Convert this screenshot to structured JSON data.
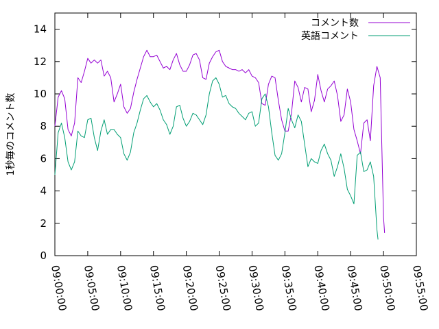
{
  "chart_data": {
    "type": "line",
    "title": "",
    "xlabel": "",
    "ylabel": "1秒毎のコメント数",
    "ylim": [
      0,
      15
    ],
    "yticks": [
      "0",
      "2",
      "4",
      "6",
      "8",
      "10",
      "12",
      "14"
    ],
    "xlim": [
      "09:00:00",
      "09:55:00"
    ],
    "xticks": [
      "09:00:00",
      "09:05:00",
      "09:10:00",
      "09:15:00",
      "09:20:00",
      "09:25:00",
      "09:30:00",
      "09:35:00",
      "09:40:00",
      "09:45:00",
      "09:50:00",
      "09:55:00"
    ],
    "grid": false,
    "legend_position": "top-right",
    "series": [
      {
        "name": "コメント数",
        "color": "#9400d3",
        "points": [
          [
            "09:00:00",
            8.0
          ],
          [
            "09:00:30",
            9.8
          ],
          [
            "09:01:00",
            10.2
          ],
          [
            "09:01:30",
            9.7
          ],
          [
            "09:02:00",
            7.8
          ],
          [
            "09:02:30",
            7.4
          ],
          [
            "09:03:00",
            8.2
          ],
          [
            "09:03:30",
            11.0
          ],
          [
            "09:04:00",
            10.7
          ],
          [
            "09:04:30",
            11.4
          ],
          [
            "09:05:00",
            12.2
          ],
          [
            "09:05:30",
            11.9
          ],
          [
            "09:06:00",
            12.1
          ],
          [
            "09:06:30",
            11.9
          ],
          [
            "09:07:00",
            12.1
          ],
          [
            "09:07:30",
            11.1
          ],
          [
            "09:08:00",
            11.4
          ],
          [
            "09:08:30",
            11.0
          ],
          [
            "09:09:00",
            9.5
          ],
          [
            "09:09:30",
            10.0
          ],
          [
            "09:10:00",
            10.6
          ],
          [
            "09:10:30",
            9.2
          ],
          [
            "09:11:00",
            8.8
          ],
          [
            "09:11:30",
            9.1
          ],
          [
            "09:12:00",
            10.1
          ],
          [
            "09:12:30",
            10.9
          ],
          [
            "09:13:00",
            11.6
          ],
          [
            "09:13:30",
            12.3
          ],
          [
            "09:14:00",
            12.7
          ],
          [
            "09:14:30",
            12.3
          ],
          [
            "09:15:00",
            12.3
          ],
          [
            "09:15:30",
            12.4
          ],
          [
            "09:16:00",
            12.0
          ],
          [
            "09:16:30",
            11.6
          ],
          [
            "09:17:00",
            11.7
          ],
          [
            "09:17:30",
            11.5
          ],
          [
            "09:18:00",
            12.1
          ],
          [
            "09:18:30",
            12.5
          ],
          [
            "09:19:00",
            11.8
          ],
          [
            "09:19:30",
            11.4
          ],
          [
            "09:20:00",
            11.4
          ],
          [
            "09:20:30",
            11.8
          ],
          [
            "09:21:00",
            12.4
          ],
          [
            "09:21:30",
            12.5
          ],
          [
            "09:22:00",
            12.1
          ],
          [
            "09:22:30",
            11.0
          ],
          [
            "09:23:00",
            10.9
          ],
          [
            "09:23:30",
            11.9
          ],
          [
            "09:24:00",
            12.3
          ],
          [
            "09:24:30",
            12.6
          ],
          [
            "09:25:00",
            12.7
          ],
          [
            "09:25:30",
            12.0
          ],
          [
            "09:26:00",
            11.7
          ],
          [
            "09:26:30",
            11.6
          ],
          [
            "09:27:00",
            11.5
          ],
          [
            "09:27:30",
            11.5
          ],
          [
            "09:28:00",
            11.4
          ],
          [
            "09:28:30",
            11.5
          ],
          [
            "09:29:00",
            11.3
          ],
          [
            "09:29:30",
            11.5
          ],
          [
            "09:30:00",
            11.1
          ],
          [
            "09:30:30",
            11.0
          ],
          [
            "09:31:00",
            10.7
          ],
          [
            "09:31:30",
            9.4
          ],
          [
            "09:32:00",
            9.3
          ],
          [
            "09:32:30",
            10.6
          ],
          [
            "09:33:00",
            11.1
          ],
          [
            "09:33:30",
            11.0
          ],
          [
            "09:34:00",
            9.6
          ],
          [
            "09:34:30",
            8.4
          ],
          [
            "09:35:00",
            7.7
          ],
          [
            "09:35:30",
            7.7
          ],
          [
            "09:36:00",
            8.8
          ],
          [
            "09:36:30",
            10.8
          ],
          [
            "09:37:00",
            10.4
          ],
          [
            "09:37:30",
            9.5
          ],
          [
            "09:38:00",
            10.4
          ],
          [
            "09:38:30",
            10.3
          ],
          [
            "09:39:00",
            8.9
          ],
          [
            "09:39:30",
            9.6
          ],
          [
            "09:40:00",
            11.2
          ],
          [
            "09:40:30",
            10.2
          ],
          [
            "09:41:00",
            9.5
          ],
          [
            "09:41:30",
            10.3
          ],
          [
            "09:42:00",
            10.5
          ],
          [
            "09:42:30",
            10.8
          ],
          [
            "09:43:00",
            9.9
          ],
          [
            "09:43:30",
            8.3
          ],
          [
            "09:44:00",
            8.7
          ],
          [
            "09:44:30",
            10.3
          ],
          [
            "09:45:00",
            9.5
          ],
          [
            "09:45:30",
            7.8
          ],
          [
            "09:46:00",
            7.1
          ],
          [
            "09:46:30",
            6.3
          ],
          [
            "09:47:00",
            8.2
          ],
          [
            "09:47:30",
            8.4
          ],
          [
            "09:48:00",
            7.1
          ],
          [
            "09:48:30",
            10.5
          ],
          [
            "09:49:00",
            11.7
          ],
          [
            "09:49:30",
            11.0
          ],
          [
            "09:50:00",
            2.4
          ],
          [
            "09:50:10",
            1.4
          ]
        ]
      },
      {
        "name": "英語コメント",
        "color": "#009e73",
        "points": [
          [
            "09:00:00",
            5.0
          ],
          [
            "09:00:30",
            7.6
          ],
          [
            "09:01:00",
            8.2
          ],
          [
            "09:01:30",
            7.3
          ],
          [
            "09:02:00",
            5.8
          ],
          [
            "09:02:30",
            5.3
          ],
          [
            "09:03:00",
            5.8
          ],
          [
            "09:03:30",
            7.7
          ],
          [
            "09:04:00",
            7.4
          ],
          [
            "09:04:30",
            7.3
          ],
          [
            "09:05:00",
            8.4
          ],
          [
            "09:05:30",
            8.5
          ],
          [
            "09:06:00",
            7.3
          ],
          [
            "09:06:30",
            6.5
          ],
          [
            "09:07:00",
            7.7
          ],
          [
            "09:07:30",
            8.4
          ],
          [
            "09:08:00",
            7.5
          ],
          [
            "09:08:30",
            7.8
          ],
          [
            "09:09:00",
            7.8
          ],
          [
            "09:09:30",
            7.5
          ],
          [
            "09:10:00",
            7.3
          ],
          [
            "09:10:30",
            6.3
          ],
          [
            "09:11:00",
            5.9
          ],
          [
            "09:11:30",
            6.4
          ],
          [
            "09:12:00",
            7.6
          ],
          [
            "09:12:30",
            8.2
          ],
          [
            "09:13:00",
            9.0
          ],
          [
            "09:13:30",
            9.7
          ],
          [
            "09:14:00",
            9.9
          ],
          [
            "09:14:30",
            9.5
          ],
          [
            "09:15:00",
            9.2
          ],
          [
            "09:15:30",
            9.4
          ],
          [
            "09:16:00",
            9.0
          ],
          [
            "09:16:30",
            8.4
          ],
          [
            "09:17:00",
            8.1
          ],
          [
            "09:17:30",
            7.5
          ],
          [
            "09:18:00",
            8.0
          ],
          [
            "09:18:30",
            9.2
          ],
          [
            "09:19:00",
            9.3
          ],
          [
            "09:19:30",
            8.5
          ],
          [
            "09:20:00",
            8.0
          ],
          [
            "09:20:30",
            8.3
          ],
          [
            "09:21:00",
            8.8
          ],
          [
            "09:21:30",
            8.7
          ],
          [
            "09:22:00",
            8.4
          ],
          [
            "09:22:30",
            8.1
          ],
          [
            "09:23:00",
            8.7
          ],
          [
            "09:23:30",
            10.0
          ],
          [
            "09:24:00",
            10.8
          ],
          [
            "09:24:30",
            11.0
          ],
          [
            "09:25:00",
            10.6
          ],
          [
            "09:25:30",
            9.8
          ],
          [
            "09:26:00",
            9.9
          ],
          [
            "09:26:30",
            9.4
          ],
          [
            "09:27:00",
            9.2
          ],
          [
            "09:27:30",
            9.1
          ],
          [
            "09:28:00",
            8.8
          ],
          [
            "09:28:30",
            8.6
          ],
          [
            "09:29:00",
            8.4
          ],
          [
            "09:29:30",
            8.8
          ],
          [
            "09:30:00",
            8.9
          ],
          [
            "09:30:30",
            8.0
          ],
          [
            "09:31:00",
            8.2
          ],
          [
            "09:31:30",
            9.7
          ],
          [
            "09:32:00",
            10.0
          ],
          [
            "09:32:30",
            9.2
          ],
          [
            "09:33:00",
            7.6
          ],
          [
            "09:33:30",
            6.2
          ],
          [
            "09:34:00",
            5.9
          ],
          [
            "09:34:30",
            6.3
          ],
          [
            "09:35:00",
            7.6
          ],
          [
            "09:35:30",
            9.1
          ],
          [
            "09:36:00",
            8.4
          ],
          [
            "09:36:30",
            7.9
          ],
          [
            "09:37:00",
            8.7
          ],
          [
            "09:37:30",
            8.3
          ],
          [
            "09:38:00",
            6.9
          ],
          [
            "09:38:30",
            5.5
          ],
          [
            "09:39:00",
            6.0
          ],
          [
            "09:39:30",
            5.8
          ],
          [
            "09:40:00",
            5.7
          ],
          [
            "09:40:30",
            6.5
          ],
          [
            "09:41:00",
            6.9
          ],
          [
            "09:41:30",
            6.3
          ],
          [
            "09:42:00",
            5.9
          ],
          [
            "09:42:30",
            4.9
          ],
          [
            "09:43:00",
            5.5
          ],
          [
            "09:43:30",
            6.3
          ],
          [
            "09:44:00",
            5.4
          ],
          [
            "09:44:30",
            4.1
          ],
          [
            "09:45:00",
            3.7
          ],
          [
            "09:45:30",
            3.2
          ],
          [
            "09:46:00",
            6.2
          ],
          [
            "09:46:30",
            6.4
          ],
          [
            "09:47:00",
            5.2
          ],
          [
            "09:47:30",
            5.3
          ],
          [
            "09:48:00",
            5.8
          ],
          [
            "09:48:30",
            4.9
          ],
          [
            "09:49:00",
            1.6
          ],
          [
            "09:49:10",
            1.0
          ]
        ]
      }
    ]
  }
}
